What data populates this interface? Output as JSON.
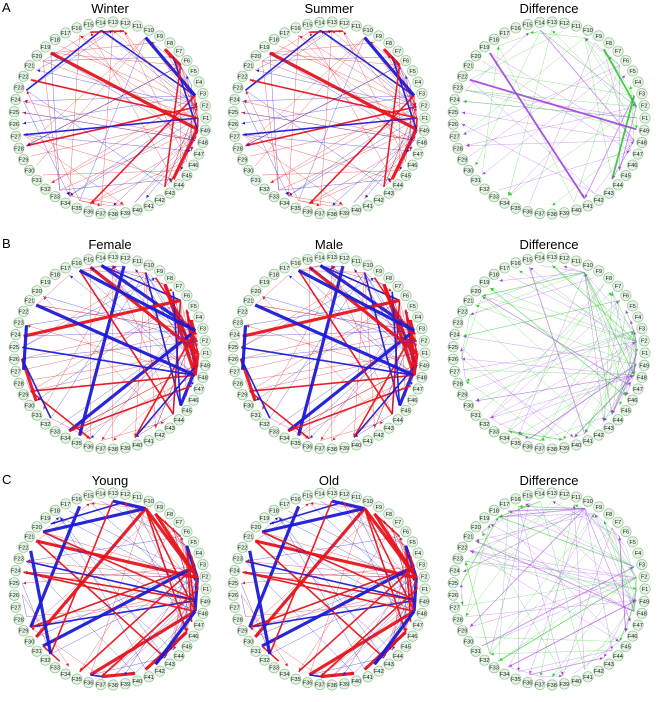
{
  "rows": [
    {
      "label": "A",
      "panels": [
        {
          "title": "Winter",
          "kind": "network"
        },
        {
          "title": "Summer",
          "kind": "network"
        },
        {
          "title": "Difference",
          "kind": "difference"
        }
      ]
    },
    {
      "label": "B",
      "panels": [
        {
          "title": "Female",
          "kind": "network"
        },
        {
          "title": "Male",
          "kind": "network"
        },
        {
          "title": "Difference",
          "kind": "difference"
        }
      ]
    },
    {
      "label": "C",
      "panels": [
        {
          "title": "Young",
          "kind": "network"
        },
        {
          "title": "Old",
          "kind": "network"
        },
        {
          "title": "Difference",
          "kind": "difference"
        }
      ]
    }
  ],
  "nodes": [
    "F1",
    "F2",
    "F3",
    "F4",
    "F5",
    "F6",
    "F7",
    "F8",
    "F9",
    "F10",
    "F11",
    "F12",
    "F13",
    "F14",
    "F15",
    "F16",
    "F17",
    "F18",
    "F19",
    "F20",
    "F21",
    "F22",
    "F23",
    "F24",
    "F25",
    "F26",
    "F27",
    "F28",
    "F29",
    "F30",
    "F31",
    "F32",
    "F33",
    "F34",
    "F35",
    "F36",
    "F37",
    "F38",
    "F39",
    "F40",
    "F41",
    "F42",
    "F43",
    "F44",
    "F45",
    "F46",
    "F47",
    "F48",
    "F49"
  ],
  "colors": {
    "positive": "#e8141b",
    "negative": "#1a1ad8",
    "diff_gain": "#22d022",
    "diff_loss": "#a040e0",
    "node_fill": "#e3f2e3",
    "node_stroke": "#8fbf8f"
  }
}
